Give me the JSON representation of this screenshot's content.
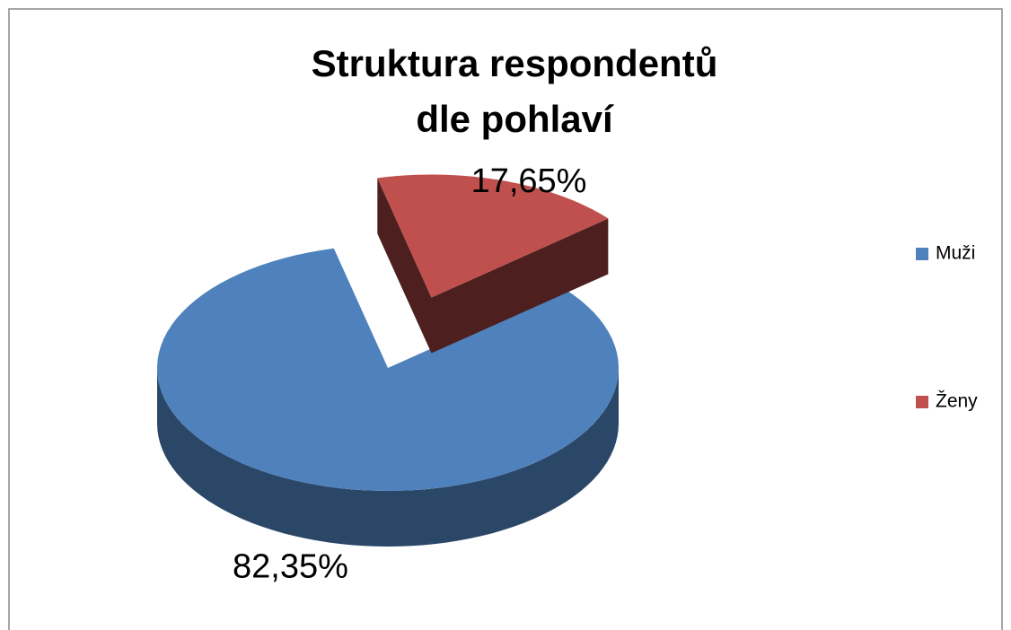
{
  "chart_data": {
    "type": "pie3d",
    "title": "Struktura respondentů dle pohlaví",
    "categories": [
      "Muži",
      "Ženy"
    ],
    "values": [
      82.35,
      17.65
    ],
    "value_labels": [
      "82,35%",
      "17,65%"
    ],
    "colors": [
      "#4f81bd",
      "#c0504d"
    ],
    "legend": "right"
  }
}
